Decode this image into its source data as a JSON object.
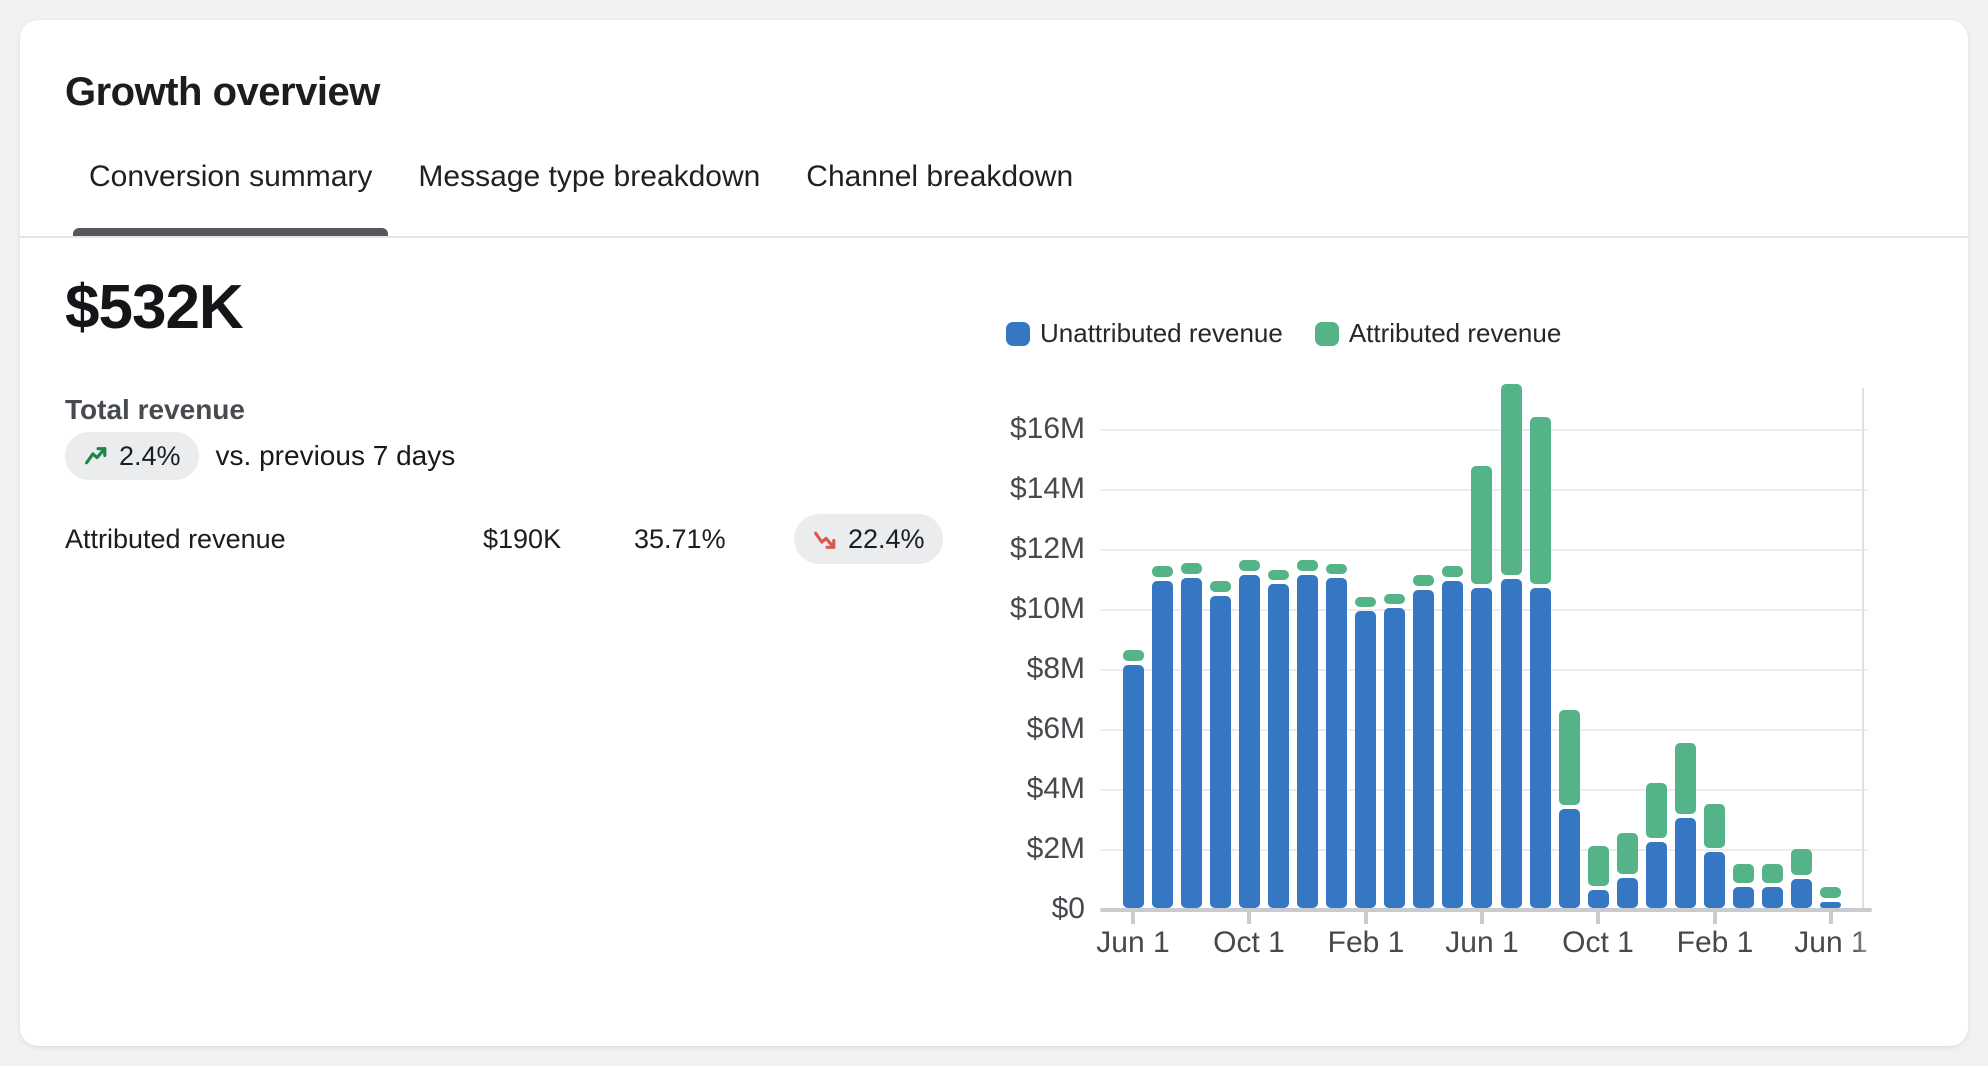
{
  "header": {
    "title": "Growth overview"
  },
  "tabs": [
    {
      "label": "Conversion summary",
      "active": true
    },
    {
      "label": "Message type breakdown",
      "active": false
    },
    {
      "label": "Channel breakdown",
      "active": false
    }
  ],
  "summary": {
    "total_value": "$532K",
    "total_label": "Total revenue",
    "change_badge": {
      "value": "2.4%",
      "direction": "up"
    },
    "change_suffix": "vs. previous 7 days",
    "attributed_row": {
      "label": "Attributed revenue",
      "value": "$190K",
      "percent": "35.71%",
      "badge": {
        "value": "22.4%",
        "direction": "down"
      }
    }
  },
  "colors": {
    "unattributed_blue": "#3577C2",
    "attributed_green": "#55B388",
    "trend_up_green": "#1E8449",
    "trend_down_red": "#D9584B",
    "pill_background": "#EBECEE"
  },
  "chart_data": {
    "type": "bar",
    "stacked": true,
    "grid": "horizontal",
    "legend_position": "top",
    "y_ticks": [
      "$0",
      "$2M",
      "$4M",
      "$6M",
      "$8M",
      "$10M",
      "$12M",
      "$14M",
      "$16M"
    ],
    "y_tick_values_m": [
      0,
      2,
      4,
      6,
      8,
      10,
      12,
      14,
      16
    ],
    "ylim_m": [
      0,
      17.6
    ],
    "x_ticks": [
      {
        "index": 0,
        "label": "Jun 1"
      },
      {
        "index": 4,
        "label": "Oct 1"
      },
      {
        "index": 8,
        "label": "Feb 1"
      },
      {
        "index": 12,
        "label": "Jun 1"
      },
      {
        "index": 16,
        "label": "Oct 1"
      },
      {
        "index": 20,
        "label": "Feb 1"
      },
      {
        "index": 24,
        "label": "Jun 1"
      }
    ],
    "series": [
      {
        "name": "Unattributed revenue",
        "color": "#3577C2",
        "values_m": [
          8.1,
          10.9,
          11.0,
          10.4,
          11.1,
          10.8,
          11.1,
          11.0,
          9.9,
          10.0,
          10.6,
          10.9,
          10.65,
          10.95,
          10.65,
          3.3,
          0.6,
          1.0,
          2.2,
          3.0,
          1.85,
          0.7,
          0.7,
          0.95,
          0.2
        ]
      },
      {
        "name": "Attributed revenue",
        "color": "#55B388",
        "values_m": [
          0.5,
          0.5,
          0.5,
          0.5,
          0.5,
          0.45,
          0.5,
          0.45,
          0.45,
          0.45,
          0.5,
          0.5,
          4.05,
          6.5,
          5.7,
          3.3,
          1.45,
          1.5,
          1.95,
          2.5,
          1.6,
          0.75,
          0.75,
          1.0,
          0.5
        ]
      }
    ]
  }
}
